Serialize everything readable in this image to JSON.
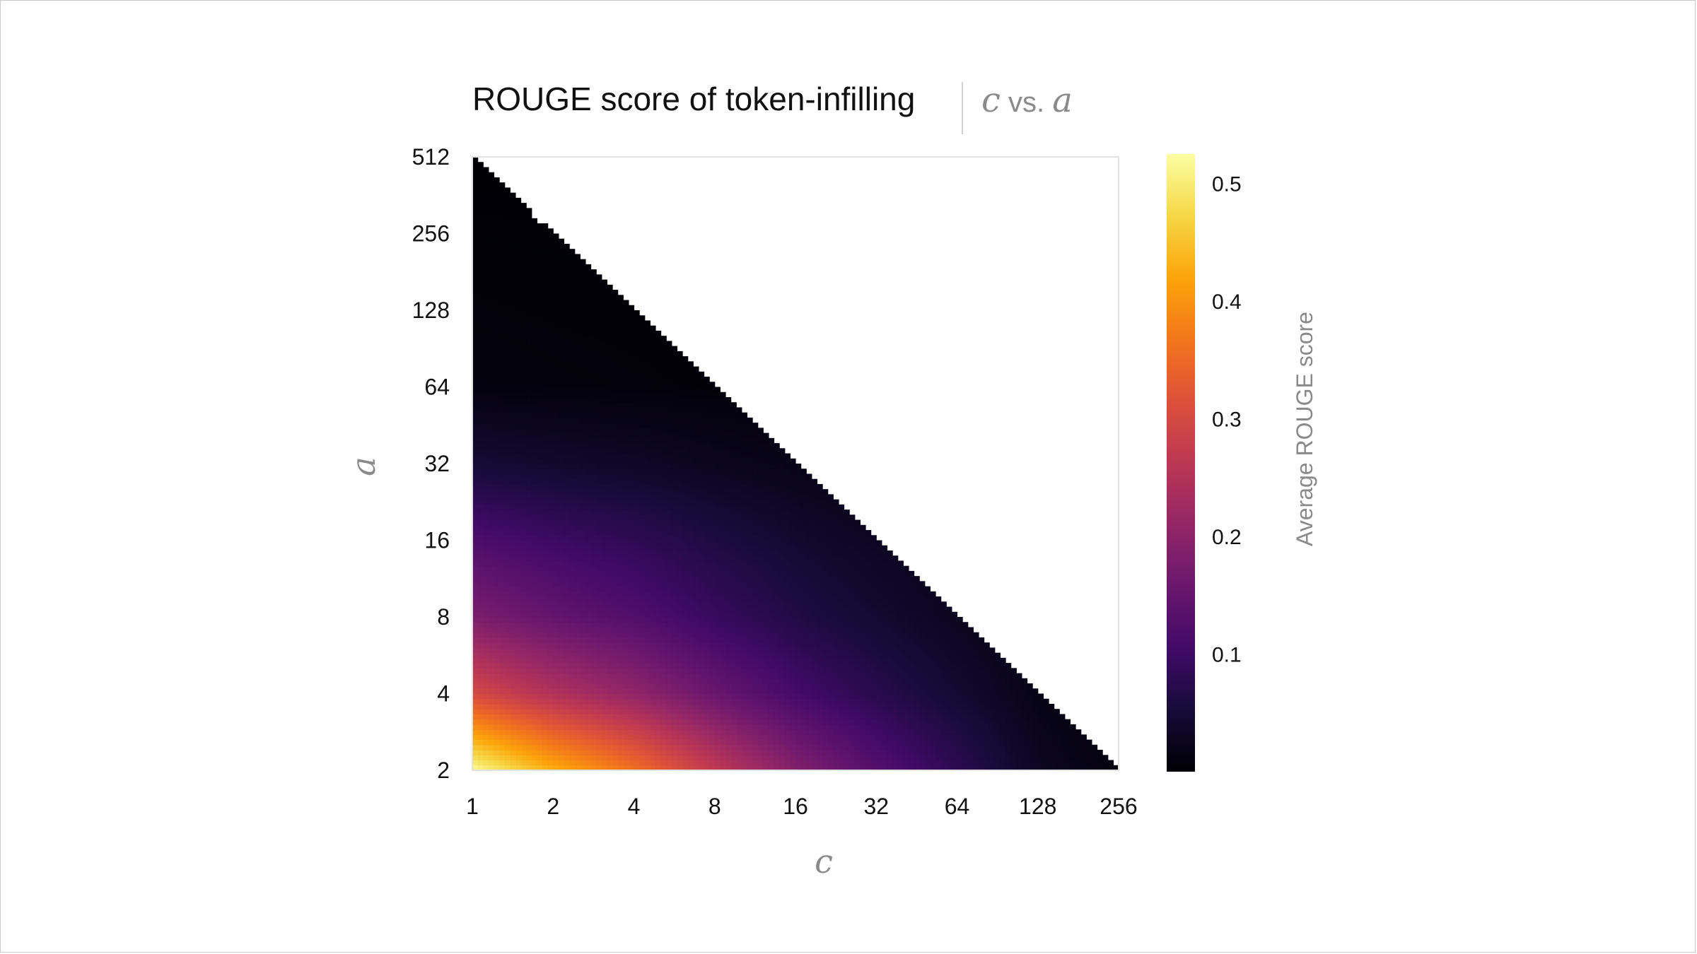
{
  "chart_data": {
    "type": "heatmap",
    "title": "ROUGE score of token-infilling",
    "subtitle": {
      "x_symbol": "c",
      "separator": "vs.",
      "y_symbol": "a"
    },
    "xlabel": "c",
    "ylabel": "a",
    "x_scale": "log2",
    "y_scale": "log2",
    "xlim": [
      1,
      256
    ],
    "ylim": [
      2,
      512
    ],
    "x_ticks": [
      "1",
      "2",
      "4",
      "8",
      "16",
      "32",
      "64",
      "128",
      "256"
    ],
    "y_ticks": [
      "512",
      "256",
      "128",
      "64",
      "32",
      "16",
      "8",
      "4",
      "2"
    ],
    "valid_region": "c * a <= 512 (upper-right triangle is blank)",
    "colormap": "inferno",
    "colorbar": {
      "label": "Average ROUGE score",
      "min": 0.0,
      "max": 0.525,
      "ticks": [
        "0.5",
        "0.4",
        "0.3",
        "0.2",
        "0.1"
      ],
      "tick_values": [
        0.5,
        0.4,
        0.3,
        0.2,
        0.1
      ]
    },
    "sample_values": [
      {
        "c": 1,
        "a": 2,
        "value": 0.52
      },
      {
        "c": 2,
        "a": 2,
        "value": 0.43
      },
      {
        "c": 4,
        "a": 2,
        "value": 0.36
      },
      {
        "c": 8,
        "a": 2,
        "value": 0.27
      },
      {
        "c": 16,
        "a": 2,
        "value": 0.19
      },
      {
        "c": 32,
        "a": 2,
        "value": 0.13
      },
      {
        "c": 64,
        "a": 2,
        "value": 0.08
      },
      {
        "c": 128,
        "a": 2,
        "value": 0.03
      },
      {
        "c": 256,
        "a": 2,
        "value": 0.01
      },
      {
        "c": 1,
        "a": 4,
        "value": 0.3
      },
      {
        "c": 1,
        "a": 8,
        "value": 0.18
      },
      {
        "c": 1,
        "a": 16,
        "value": 0.12
      },
      {
        "c": 1,
        "a": 32,
        "value": 0.05
      },
      {
        "c": 1,
        "a": 64,
        "value": 0.01
      },
      {
        "c": 1,
        "a": 512,
        "value": 0.0
      }
    ]
  }
}
